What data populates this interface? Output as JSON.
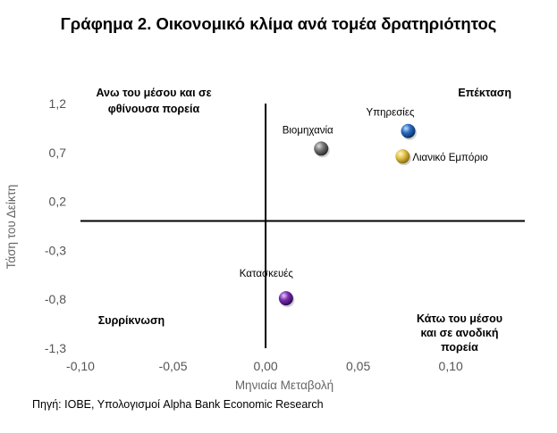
{
  "title": "Γράφημα 2. Οικονομικό κλίμα ανά τομέα δρατηριότητος",
  "source": "Πηγή: ΙΟΒΕ, Υπολογισμοί Alpha Bank  Economic Research",
  "chart_data": {
    "type": "scatter",
    "xlabel": "Μηνιαία Μεταβολή",
    "ylabel": "Τάση του Δείκτη",
    "xlim": [
      -0.1,
      0.14
    ],
    "ylim": [
      -1.3,
      1.2
    ],
    "xticks": [
      "-0,10",
      "-0,05",
      "0,00",
      "0,05",
      "0,10"
    ],
    "yticks": [
      "1,2",
      "0,7",
      "0,2",
      "-0,3",
      "-0,8",
      "-1,3"
    ],
    "grid": false,
    "points": [
      {
        "label": "Βιομηχανία",
        "x": 0.03,
        "y": 0.74,
        "color": "#5a5a5a"
      },
      {
        "label": "Υπηρεσίες",
        "x": 0.077,
        "y": 0.92,
        "color": "#1f5fa8"
      },
      {
        "label": "Λιανικό Εμπόριο",
        "x": 0.074,
        "y": 0.66,
        "color": "#d9b93a"
      },
      {
        "label": "Κατασκευές",
        "x": 0.011,
        "y": -0.79,
        "color": "#6a2a9a"
      }
    ],
    "quadrants": [
      {
        "text": "Ανω του μέσου και σε φθίνουσα πορεία"
      },
      {
        "text": "Επέκταση"
      },
      {
        "text": "Συρρίκνωση"
      },
      {
        "text": "Κάτω του μέσου και σε ανοδική πορεία"
      }
    ]
  }
}
